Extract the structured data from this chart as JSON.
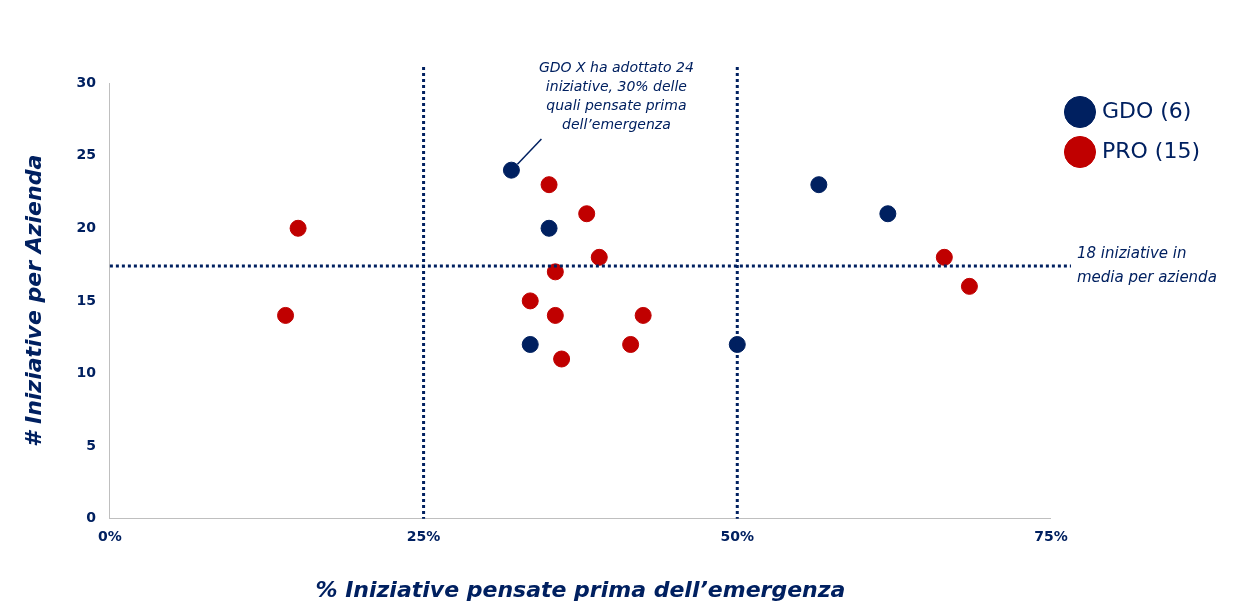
{
  "chart_data": {
    "type": "scatter",
    "xlabel": "% Iniziative pensate prima dell’emergenza",
    "ylabel": "# Iniziative per Azienda",
    "xlim": [
      0,
      75
    ],
    "xticks": [
      {
        "value": 0,
        "label": "0%"
      },
      {
        "value": 25,
        "label": "25%"
      },
      {
        "value": 50,
        "label": "50%"
      },
      {
        "value": 75,
        "label": "75%"
      }
    ],
    "ylim": [
      0,
      30
    ],
    "yticks": [
      0,
      5,
      10,
      15,
      20,
      25,
      30
    ],
    "series": [
      {
        "name": "GDO (6)",
        "color": "#002060",
        "x": [
          32,
          35,
          33.5,
          50,
          56.5,
          62
        ],
        "values": [
          24,
          20,
          12,
          12,
          23,
          21
        ]
      },
      {
        "name": "PRO (15)",
        "color": "#c00000",
        "x": [
          15,
          14,
          35,
          38,
          39,
          35.5,
          33.5,
          35.5,
          42.5,
          41.5,
          36,
          66.5,
          68.5
        ],
        "values": [
          20,
          14,
          23,
          21,
          18,
          17,
          15,
          14,
          14,
          12,
          11,
          18,
          16
        ]
      }
    ],
    "ref_lines": [
      {
        "axis": "x",
        "value": 25,
        "color": "#002060",
        "line_style": "dotted"
      },
      {
        "axis": "x",
        "value": 50,
        "color": "#002060",
        "line_style": "dotted"
      },
      {
        "axis": "y",
        "value": 17.4,
        "label": "18 iniziative in\nmedia per azienda",
        "color": "#002060",
        "line_style": "dotted"
      }
    ],
    "annotations": [
      {
        "text": "GDO X ha adottato 24\niniziative, 30% delle\nquali pensate prima\ndell’emergenza",
        "x": 32,
        "y": 24
      }
    ],
    "grid": false,
    "legend": "top right",
    "marker": "circle"
  }
}
